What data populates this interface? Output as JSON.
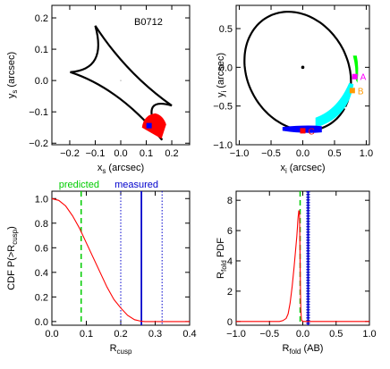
{
  "chart_data": [
    {
      "type": "scatter",
      "panel": "source-plane caustic",
      "annotation": "B0712",
      "xlabel": {
        "main": "x",
        "sub": "s",
        "rest": " (arcsec)"
      },
      "ylabel": {
        "main": "y",
        "sub": "s",
        "rest": " (arcsec)"
      },
      "xlim": [
        -0.27,
        0.27
      ],
      "ylim": [
        -0.205,
        0.24
      ],
      "xticks": [
        -0.2,
        -0.1,
        0.0,
        0.1,
        0.2
      ],
      "xtick_labels": [
        "−0.2",
        "−0.1",
        "0.0",
        "0.1",
        "0.2"
      ],
      "yticks": [
        -0.2,
        -0.1,
        0.0,
        0.1,
        0.2
      ],
      "ytick_labels": [
        "−0.2",
        "−0.1",
        "0.0",
        "0.1",
        "0.2"
      ],
      "caustic_cusps": {
        "top": [
          -0.1,
          0.175
        ],
        "right": [
          0.2,
          -0.08
        ],
        "bottom": [
          0.162,
          -0.19
        ],
        "left": [
          -0.198,
          0.027
        ]
      },
      "source_region": {
        "color": "#ff0000",
        "center": [
          0.13,
          -0.138
        ]
      },
      "source_point": {
        "x": 0.111,
        "y": -0.144,
        "color": "#0000ff"
      },
      "center_point": {
        "x": 0.0,
        "y": 0.0
      }
    },
    {
      "type": "scatter",
      "panel": "image-plane critical curve",
      "xlabel": {
        "main": "x",
        "sub": "i",
        "rest": " (arcsec)"
      },
      "ylabel": {
        "main": "y",
        "sub": "i",
        "rest": " (arcsec)"
      },
      "xlim": [
        -1.05,
        1.05
      ],
      "ylim": [
        -1.0,
        0.8
      ],
      "xticks": [
        -1.0,
        -0.5,
        0.0,
        0.5,
        1.0
      ],
      "xtick_labels": [
        "−1.0",
        "−0.5",
        "0.0",
        "0.5",
        "1.0"
      ],
      "yticks": [
        -1.0,
        -0.5,
        0.0,
        0.5
      ],
      "ytick_labels": [
        "−1.0",
        "−0.5",
        "0.0",
        "0.5"
      ],
      "galaxy_center": {
        "x": 0.0,
        "y": 0.0
      },
      "images": [
        {
          "label": "A",
          "x": 0.82,
          "y": -0.12,
          "color": "#ff00ff"
        },
        {
          "label": "B",
          "x": 0.78,
          "y": -0.3,
          "color": "#ff9900"
        },
        {
          "label": "C",
          "x": 0.0,
          "y": -0.82,
          "color": "#ff0000"
        }
      ],
      "region_colors": {
        "A": "#00ff00",
        "B": "#00ffff",
        "C": "#0000ff"
      }
    },
    {
      "type": "line",
      "panel": "cusp relation CDF",
      "xlabel": {
        "main": "R",
        "sub": "cusp",
        "rest": ""
      },
      "ylabel": {
        "main": "CDF  P(>R",
        "sub": "cusp",
        "rest": ")"
      },
      "xlim": [
        0.0,
        0.4
      ],
      "ylim": [
        -0.03,
        1.06
      ],
      "xticks": [
        0.0,
        0.1,
        0.2,
        0.3,
        0.4
      ],
      "xtick_labels": [
        "0.0",
        "0.1",
        "0.2",
        "0.3",
        "0.4"
      ],
      "yticks": [
        0.0,
        0.2,
        0.4,
        0.6,
        0.8,
        1.0
      ],
      "ytick_labels": [
        "0.0",
        "0.2",
        "0.4",
        "0.6",
        "0.8",
        "1.0"
      ],
      "legend_text": [
        {
          "text": "predicted",
          "color": "#00cc00"
        },
        {
          "text": "measured",
          "color": "#0000cc"
        }
      ],
      "predicted_x": 0.085,
      "measured": {
        "value": 0.26,
        "low": 0.2,
        "high": 0.32
      },
      "series": [
        {
          "color": "#ff0000",
          "x": [
            0.0,
            0.02,
            0.04,
            0.06,
            0.08,
            0.1,
            0.12,
            0.14,
            0.16,
            0.18,
            0.2,
            0.22,
            0.24,
            0.26,
            0.27,
            0.3,
            0.35,
            0.4
          ],
          "y": [
            1.0,
            0.985,
            0.94,
            0.86,
            0.76,
            0.64,
            0.52,
            0.4,
            0.28,
            0.18,
            0.11,
            0.05,
            0.015,
            0.002,
            0.0,
            0.0,
            0.0,
            0.0
          ]
        }
      ]
    },
    {
      "type": "line",
      "panel": "fold relation PDF",
      "xlabel": {
        "main": "R",
        "sub": "fold",
        "rest": " (AB)"
      },
      "ylabel": {
        "main": "R",
        "sub": "fold",
        "rest": " PDF"
      },
      "xlim": [
        -1.0,
        1.0
      ],
      "ylim": [
        -0.25,
        8.6
      ],
      "xticks": [
        -1.0,
        -0.5,
        0.0,
        0.5,
        1.0
      ],
      "xtick_labels": [
        "−1.0",
        "−0.5",
        "0.0",
        "0.5",
        "1.0"
      ],
      "yticks": [
        0,
        2,
        4,
        6,
        8
      ],
      "ytick_labels": [
        "0",
        "2",
        "4",
        "6",
        "8"
      ],
      "predicted_x": -0.04,
      "measured": {
        "value": 0.08,
        "low": 0.06,
        "high": 0.1
      },
      "series": [
        {
          "color": "#ff0000",
          "x": [
            -1.0,
            -0.35,
            -0.3,
            -0.25,
            -0.22,
            -0.19,
            -0.16,
            -0.13,
            -0.11,
            -0.09,
            -0.08,
            -0.075,
            -0.07,
            -0.065,
            -0.06,
            -0.055,
            -0.05,
            -0.045,
            -0.04,
            -0.035,
            -0.03,
            -0.02,
            0.0,
            1.0
          ],
          "y": [
            0.0,
            0.0,
            0.05,
            0.2,
            0.5,
            1.2,
            2.3,
            3.6,
            4.6,
            5.6,
            6.2,
            6.6,
            6.9,
            7.1,
            7.3,
            7.3,
            7.2,
            6.0,
            4.0,
            2.0,
            0.8,
            0.1,
            0.0,
            0.0
          ]
        }
      ]
    }
  ]
}
